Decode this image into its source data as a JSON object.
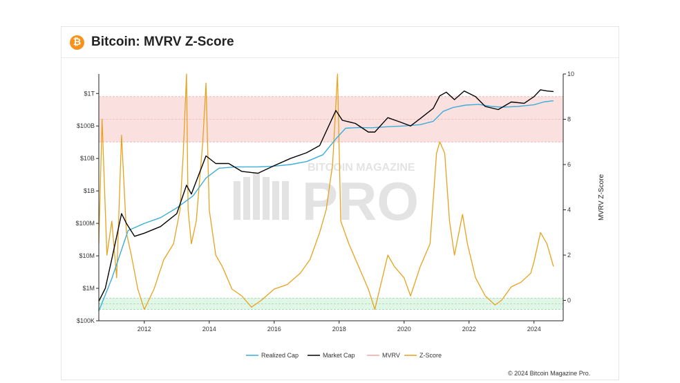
{
  "header": {
    "title": "Bitcoin: MVRV Z-Score",
    "icon": "bitcoin-icon"
  },
  "watermark": {
    "top": "BITCOIN MAGAZINE",
    "main": "PRO"
  },
  "copyright": "© 2024 Bitcoin Magazine Pro.",
  "colors": {
    "realized": "#3aaed8",
    "market": "#000000",
    "mvrv": "#f4a6a6",
    "zscore": "#e8a21c",
    "red_band": "#fbe0e0",
    "green_band": "#e2f6e8"
  },
  "chart_data": {
    "type": "line",
    "title": "Bitcoin: MVRV Z-Score",
    "xlabel": "",
    "ylabel_left": "",
    "ylabel_right": "MVRV Z-Score",
    "xlim": [
      2010.6,
      2024.9
    ],
    "x_ticks": [
      2012,
      2014,
      2016,
      2018,
      2020,
      2022,
      2024
    ],
    "x_tick_labels": [
      "2012",
      "2014",
      "2016",
      "2018",
      "2020",
      "2022",
      "2024"
    ],
    "y_left_scale": "log",
    "y_left_ticks": [
      100000,
      1000000,
      10000000,
      100000000,
      1000000000,
      10000000000,
      100000000000,
      1000000000000
    ],
    "y_left_tick_labels": [
      "$100K",
      "$1M",
      "$10M",
      "$100M",
      "$1B",
      "$10B",
      "$100B",
      "$1T"
    ],
    "y_left_lim": [
      100000,
      4000000000000
    ],
    "y_right_ticks": [
      0,
      2,
      4,
      6,
      8,
      10
    ],
    "y_right_tick_labels": [
      "0",
      "2",
      "4",
      "6",
      "8",
      "10"
    ],
    "y_right_lim": [
      -0.9,
      10
    ],
    "bands": [
      {
        "name": "red",
        "from": 7,
        "to": 9
      },
      {
        "name": "green",
        "from": -0.4,
        "to": 0.1
      }
    ],
    "legend": [
      "Realized Cap",
      "Market Cap",
      "MVRV",
      "Z-Score"
    ],
    "legend_position": "bottom",
    "series": [
      {
        "name": "Realized Cap",
        "axis": "left",
        "x": [
          2010.6,
          2011.0,
          2011.5,
          2012.0,
          2012.5,
          2013.0,
          2013.5,
          2013.9,
          2014.3,
          2014.8,
          2015.5,
          2016.0,
          2016.5,
          2017.0,
          2017.5,
          2017.9,
          2018.2,
          2018.6,
          2019.0,
          2019.5,
          2020.0,
          2020.5,
          2020.9,
          2021.2,
          2021.5,
          2021.9,
          2022.3,
          2022.7,
          2023.0,
          2023.5,
          2024.0,
          2024.3,
          2024.6
        ],
        "y": [
          200000,
          2000000,
          60000000,
          100000000,
          150000000,
          300000000,
          700000000,
          2500000000,
          5000000000,
          5500000000,
          5500000000,
          5800000000,
          6500000000,
          8000000000,
          13000000000,
          40000000000,
          85000000000,
          90000000000,
          88000000000,
          95000000000,
          100000000000,
          110000000000,
          140000000000,
          280000000000,
          370000000000,
          440000000000,
          460000000000,
          400000000000,
          380000000000,
          400000000000,
          450000000000,
          550000000000,
          600000000000
        ]
      },
      {
        "name": "Market Cap",
        "axis": "left",
        "x": [
          2010.6,
          2010.8,
          2011.0,
          2011.3,
          2011.45,
          2011.7,
          2012.0,
          2012.5,
          2013.0,
          2013.3,
          2013.45,
          2013.9,
          2014.2,
          2014.6,
          2015.0,
          2015.5,
          2016.0,
          2016.5,
          2017.0,
          2017.4,
          2017.9,
          2018.1,
          2018.5,
          2018.9,
          2019.1,
          2019.5,
          2019.9,
          2020.2,
          2020.5,
          2020.9,
          2021.1,
          2021.3,
          2021.55,
          2021.85,
          2022.2,
          2022.5,
          2022.9,
          2023.3,
          2023.7,
          2024.0,
          2024.2,
          2024.4,
          2024.6
        ],
        "y": [
          400000,
          1000000,
          8000000,
          200000000,
          100000000,
          40000000,
          50000000,
          80000000,
          200000000,
          1500000000,
          800000000,
          12000000000,
          7000000000,
          7000000000,
          4000000000,
          3500000000,
          6000000000,
          10000000000,
          15000000000,
          25000000000,
          300000000000,
          150000000000,
          120000000000,
          65000000000,
          65000000000,
          180000000000,
          130000000000,
          100000000000,
          170000000000,
          350000000000,
          850000000000,
          1100000000000,
          650000000000,
          1200000000000,
          800000000000,
          400000000000,
          320000000000,
          550000000000,
          500000000000,
          800000000000,
          1300000000000,
          1200000000000,
          1150000000000
        ]
      },
      {
        "name": "Z-Score",
        "axis": "right",
        "x": [
          2010.6,
          2010.7,
          2010.85,
          2011.0,
          2011.15,
          2011.3,
          2011.45,
          2011.6,
          2011.8,
          2012.0,
          2012.3,
          2012.6,
          2012.9,
          2013.1,
          2013.2,
          2013.3,
          2013.35,
          2013.45,
          2013.6,
          2013.8,
          2013.9,
          2014.0,
          2014.2,
          2014.4,
          2014.7,
          2015.0,
          2015.3,
          2015.6,
          2016.0,
          2016.4,
          2016.8,
          2017.1,
          2017.4,
          2017.6,
          2017.8,
          2017.95,
          2018.05,
          2018.3,
          2018.6,
          2018.9,
          2019.1,
          2019.5,
          2019.7,
          2020.0,
          2020.2,
          2020.5,
          2020.8,
          2021.0,
          2021.1,
          2021.25,
          2021.4,
          2021.55,
          2021.8,
          2021.95,
          2022.2,
          2022.5,
          2022.8,
          2023.0,
          2023.3,
          2023.6,
          2023.9,
          2024.0,
          2024.2,
          2024.4,
          2024.6
        ],
        "y": [
          2.5,
          8.0,
          2.0,
          3.5,
          1.0,
          7.3,
          3.0,
          2.0,
          0.5,
          -0.4,
          0.5,
          1.8,
          2.5,
          4.0,
          6.5,
          10.0,
          4.0,
          2.5,
          3.5,
          7.0,
          9.6,
          4.0,
          2.0,
          1.5,
          0.5,
          0.2,
          -0.3,
          0.0,
          0.5,
          0.7,
          1.2,
          1.8,
          3.0,
          4.0,
          6.0,
          10.0,
          3.5,
          2.5,
          1.5,
          0.5,
          -0.4,
          2.0,
          1.5,
          1.0,
          0.2,
          1.5,
          2.5,
          6.5,
          7.0,
          6.5,
          3.5,
          2.0,
          3.8,
          2.5,
          1.0,
          0.2,
          -0.2,
          0.0,
          0.6,
          0.8,
          1.2,
          1.7,
          3.0,
          2.5,
          1.5
        ]
      }
    ]
  }
}
